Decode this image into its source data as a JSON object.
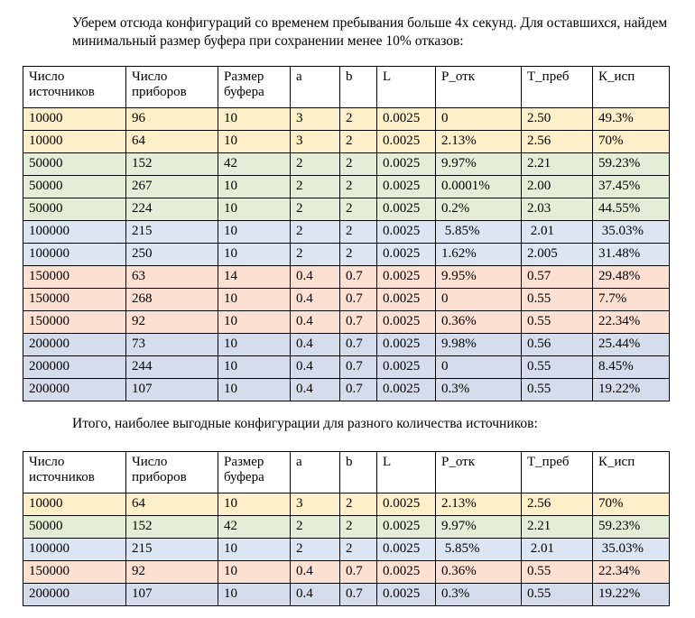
{
  "intro_text": "Уберем отсюда конфигураций со временем пребывания больше 4х секунд. Для оставшихся, найдем минимальный размер буфера при сохранении менее 10% отказов:",
  "summary_text": "Итого, наиболее выгодные конфигурации для разного количества источников:",
  "headers": [
    "Число источников",
    "Число приборов",
    "Размер буфера",
    "a",
    "b",
    "L",
    "P_отк",
    "T_преб",
    "К_исп"
  ],
  "colors": {
    "yellow": "#fdefc8",
    "green": "#e4eed6",
    "blue": "#dce6f2",
    "peach": "#fce0d2",
    "slate": "#d5dcec"
  },
  "table1": [
    {
      "color": "yellow",
      "cells": [
        "10000",
        "96",
        "10",
        "3",
        "2",
        "0.0025",
        "0",
        "2.50",
        "49.3%"
      ]
    },
    {
      "color": "yellow",
      "cells": [
        "10000",
        "64",
        "10",
        "3",
        "2",
        "0.0025",
        "2.13%",
        "2.56",
        "70%"
      ]
    },
    {
      "color": "green",
      "cells": [
        "50000",
        "152",
        "42",
        "2",
        "2",
        "0.0025",
        "9.97%",
        "2.21",
        "59.23%"
      ]
    },
    {
      "color": "green",
      "cells": [
        "50000",
        "267",
        "10",
        "2",
        "2",
        "0.0025",
        "0.0001%",
        "2.00",
        "37.45%"
      ]
    },
    {
      "color": "green",
      "cells": [
        "50000",
        "224",
        "10",
        "2",
        "2",
        "0.0025",
        "0.2%",
        "2.03",
        "44.55%"
      ]
    },
    {
      "color": "blue",
      "cells": [
        "100000",
        "215",
        "10",
        "2",
        "2",
        "0.0025",
        " 5.85%",
        " 2.01",
        " 35.03%"
      ]
    },
    {
      "color": "blue",
      "cells": [
        "100000",
        "250",
        "10",
        "2",
        "2",
        "0.0025",
        "1.62%",
        "2.005",
        "31.48%"
      ]
    },
    {
      "color": "peach",
      "cells": [
        "150000",
        "63",
        "14",
        "0.4",
        "0.7",
        "0.0025",
        "9.95%",
        "0.57",
        "29.48%"
      ]
    },
    {
      "color": "peach",
      "cells": [
        "150000",
        "268",
        "10",
        "0.4",
        "0.7",
        "0.0025",
        "0",
        "0.55",
        "7.7%"
      ]
    },
    {
      "color": "peach",
      "cells": [
        "150000",
        "92",
        "10",
        "0.4",
        "0.7",
        "0.0025",
        "0.36%",
        "0.55",
        "22.34%"
      ]
    },
    {
      "color": "slate",
      "cells": [
        "200000",
        "73",
        "10",
        "0.4",
        "0.7",
        "0.0025",
        "9.98%",
        "0.56",
        "25.44%"
      ]
    },
    {
      "color": "slate",
      "cells": [
        "200000",
        "244",
        "10",
        "0.4",
        "0.7",
        "0.0025",
        "0",
        "0.55",
        "8.45%"
      ]
    },
    {
      "color": "slate",
      "cells": [
        "200000",
        "107",
        "10",
        "0.4",
        "0.7",
        "0.0025",
        "0.3%",
        "0.55",
        "19.22%"
      ]
    }
  ],
  "table2": [
    {
      "color": "yellow",
      "cells": [
        "10000",
        "64",
        "10",
        "3",
        "2",
        "0.0025",
        "2.13%",
        "2.56",
        "70%"
      ]
    },
    {
      "color": "green",
      "cells": [
        "50000",
        "152",
        "42",
        "2",
        "2",
        "0.0025",
        "9.97%",
        "2.21",
        "59.23%"
      ]
    },
    {
      "color": "blue",
      "cells": [
        "100000",
        "215",
        "10",
        "2",
        "2",
        "0.0025",
        " 5.85%",
        " 2.01",
        " 35.03%"
      ]
    },
    {
      "color": "peach",
      "cells": [
        "150000",
        "92",
        "10",
        "0.4",
        "0.7",
        "0.0025",
        "0.36%",
        "0.55",
        "22.34%"
      ]
    },
    {
      "color": "slate",
      "cells": [
        "200000",
        "107",
        "10",
        "0.4",
        "0.7",
        "0.0025",
        "0.3%",
        "0.55",
        "19.22%"
      ]
    }
  ]
}
